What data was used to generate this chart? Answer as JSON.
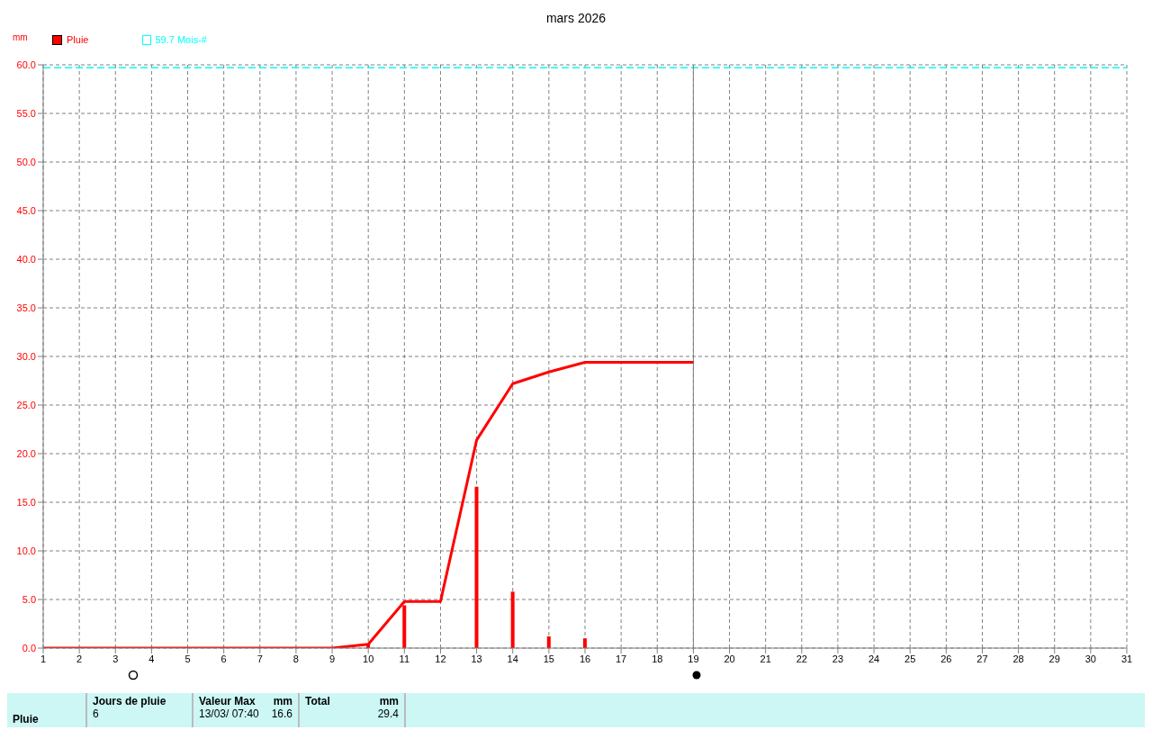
{
  "chart_data": {
    "type": "bar",
    "title": "mars 2026",
    "ylabel": "mm",
    "series": [
      {
        "name": "Pluie",
        "color": "#ff0000",
        "x": [
          10,
          11,
          13,
          14,
          15,
          16
        ],
        "values": [
          0.4,
          4.4,
          16.6,
          5.8,
          1.2,
          1.0
        ]
      },
      {
        "type": "line",
        "color": "#ff0000",
        "x": [
          1,
          2,
          3,
          4,
          5,
          6,
          7,
          8,
          9,
          10,
          11,
          12,
          13,
          14,
          15,
          16,
          17,
          18,
          19
        ],
        "values": [
          0,
          0,
          0,
          0,
          0,
          0,
          0,
          0,
          0,
          0.4,
          4.8,
          4.8,
          21.4,
          27.2,
          28.4,
          29.4,
          29.4,
          29.4,
          29.4
        ]
      }
    ],
    "xlim": [
      1,
      31
    ],
    "xticks": [
      1,
      2,
      3,
      4,
      5,
      6,
      7,
      8,
      9,
      10,
      11,
      12,
      13,
      14,
      15,
      16,
      17,
      18,
      19,
      20,
      21,
      22,
      23,
      24,
      25,
      26,
      27,
      28,
      29,
      30,
      31
    ],
    "ylim": [
      0,
      60
    ],
    "yticks": [
      {
        "value": 0,
        "label": "0.0"
      },
      {
        "value": 5,
        "label": "5.0"
      },
      {
        "value": 10,
        "label": "10.0"
      },
      {
        "value": 15,
        "label": "15.0"
      },
      {
        "value": 20,
        "label": "20.0"
      },
      {
        "value": 25,
        "label": "25.0"
      },
      {
        "value": 30,
        "label": "30.0"
      },
      {
        "value": 35,
        "label": "35.0"
      },
      {
        "value": 40,
        "label": "40.0"
      },
      {
        "value": 45,
        "label": "45.0"
      },
      {
        "value": 50,
        "label": "50.0"
      },
      {
        "value": 55,
        "label": "55.0"
      },
      {
        "value": 60,
        "label": "60.0"
      }
    ],
    "ref_lines": [
      {
        "axis": "y",
        "value": 59.7,
        "label": "59.7 Mois-#",
        "color": "#00ffff",
        "line_style": "dashed"
      },
      {
        "axis": "x",
        "value": 19,
        "color": "#808080",
        "line_style": "solid"
      }
    ],
    "grid": true,
    "legend": "top left",
    "annotations": [
      "Pluie",
      "Jours de pluie",
      "6",
      "Valeur Max",
      "mm",
      "13/03/  07:40",
      "16.6",
      "Total",
      "mm",
      "29.4"
    ]
  }
}
